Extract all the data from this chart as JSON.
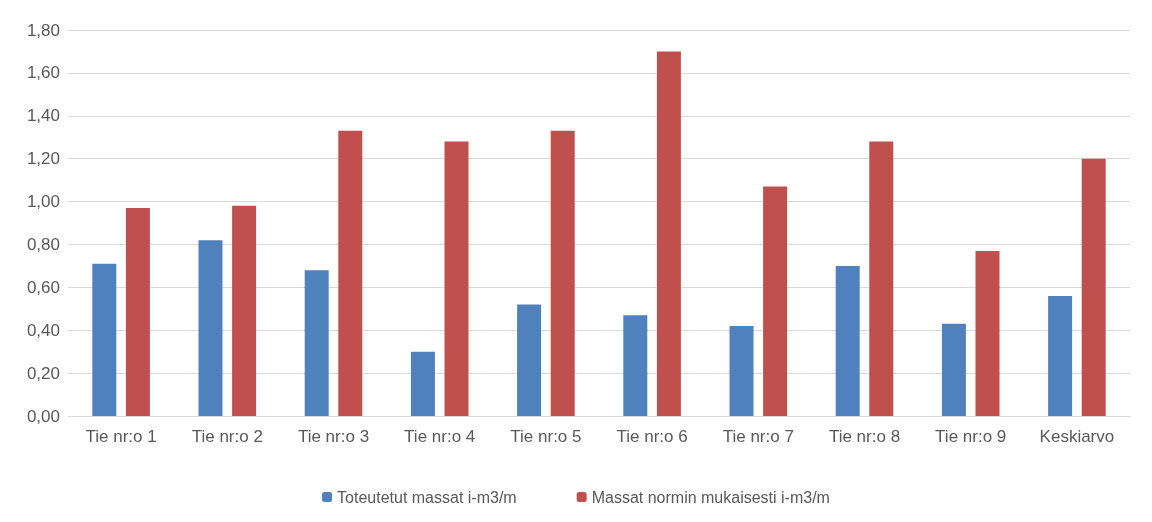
{
  "chart_data": {
    "type": "bar",
    "categories": [
      "Tie nr:o 1",
      "Tie nr:o 2",
      "Tie nr:o 3",
      "Tie nr:o 4",
      "Tie nr:o 5",
      "Tie nr:o 6",
      "Tie nr:o 7",
      "Tie nr:o 8",
      "Tie nr:o 9",
      "Keskiarvo"
    ],
    "series": [
      {
        "name": "Toteutetut massat i-m3/m",
        "color": "#4f81bd",
        "values": [
          0.71,
          0.82,
          0.68,
          0.3,
          0.52,
          0.47,
          0.42,
          0.7,
          0.43,
          0.56
        ]
      },
      {
        "name": "Massat normin mukaisesti i-m3/m",
        "color": "#c0504d",
        "values": [
          0.97,
          0.98,
          1.33,
          1.28,
          1.33,
          1.7,
          1.07,
          1.28,
          0.77,
          1.2
        ]
      }
    ],
    "ylim": [
      0,
      1.8
    ],
    "yticks": [
      {
        "value": 0,
        "label": "0,00"
      },
      {
        "value": 0.2,
        "label": "0,20"
      },
      {
        "value": 0.4,
        "label": "0,40"
      },
      {
        "value": 0.6,
        "label": "0,60"
      },
      {
        "value": 0.8,
        "label": "0,80"
      },
      {
        "value": 1,
        "label": "1,00"
      },
      {
        "value": 1.2,
        "label": "1,20"
      },
      {
        "value": 1.4,
        "label": "1,40"
      },
      {
        "value": 1.6,
        "label": "1,60"
      },
      {
        "value": 1.8,
        "label": "1,80"
      }
    ],
    "grid": "y",
    "legend": "bottom"
  }
}
